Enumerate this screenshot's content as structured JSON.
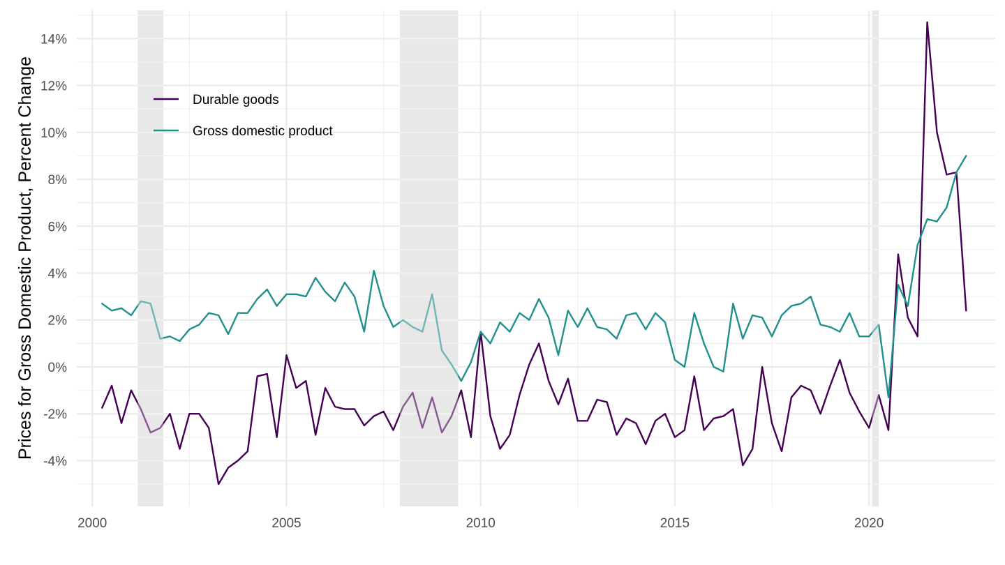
{
  "chart_data": {
    "type": "line",
    "title": "",
    "xlabel": "",
    "ylabel": "Prices for Gross Domestic Product, Percent Change",
    "xlim": [
      1999.6,
      2023.25
    ],
    "ylim": [
      -0.0595,
      0.152
    ],
    "x_ticks": [
      2000,
      2005,
      2010,
      2015,
      2020
    ],
    "x_tick_labels": [
      "2000",
      "2005",
      "2010",
      "2015",
      "2020"
    ],
    "y_ticks": [
      -0.04,
      -0.02,
      0.0,
      0.02,
      0.04,
      0.06,
      0.08,
      0.1,
      0.12,
      0.14
    ],
    "y_tick_labels": [
      "-4%",
      "-2%",
      "0%",
      "2%",
      "4%",
      "6%",
      "8%",
      "10%",
      "12%",
      "14%"
    ],
    "grid": true,
    "legend_position": "top-left",
    "recessions": [
      {
        "start": 2001.17,
        "end": 2001.83
      },
      {
        "start": 2007.92,
        "end": 2009.42
      },
      {
        "start": 2020.08,
        "end": 2020.25
      }
    ],
    "series": [
      {
        "name": "Durable goods",
        "color": "#440154",
        "x": [
          2000.25,
          2000.5,
          2000.75,
          2001.0,
          2001.25,
          2001.5,
          2001.75,
          2002.0,
          2002.25,
          2002.5,
          2002.75,
          2003.0,
          2003.25,
          2003.5,
          2003.75,
          2004.0,
          2004.25,
          2004.5,
          2004.75,
          2005.0,
          2005.25,
          2005.5,
          2005.75,
          2006.0,
          2006.25,
          2006.5,
          2006.75,
          2007.0,
          2007.25,
          2007.5,
          2007.75,
          2008.0,
          2008.25,
          2008.5,
          2008.75,
          2009.0,
          2009.25,
          2009.5,
          2009.75,
          2010.0,
          2010.25,
          2010.5,
          2010.75,
          2011.0,
          2011.25,
          2011.5,
          2011.75,
          2012.0,
          2012.25,
          2012.5,
          2012.75,
          2013.0,
          2013.25,
          2013.5,
          2013.75,
          2014.0,
          2014.25,
          2014.5,
          2014.75,
          2015.0,
          2015.25,
          2015.5,
          2015.75,
          2016.0,
          2016.25,
          2016.5,
          2016.75,
          2017.0,
          2017.25,
          2017.5,
          2017.75,
          2018.0,
          2018.25,
          2018.5,
          2018.75,
          2019.0,
          2019.25,
          2019.5,
          2019.75,
          2020.0,
          2020.25,
          2020.5,
          2020.75,
          2021.0,
          2021.25,
          2021.5,
          2021.75,
          2022.0,
          2022.25,
          2022.5
        ],
        "values": [
          -0.0175,
          -0.008,
          -0.024,
          -0.01,
          -0.018,
          -0.028,
          -0.026,
          -0.02,
          -0.035,
          -0.02,
          -0.02,
          -0.026,
          -0.05,
          -0.043,
          -0.04,
          -0.036,
          -0.004,
          -0.003,
          -0.03,
          0.005,
          -0.009,
          -0.006,
          -0.029,
          -0.009,
          -0.017,
          -0.018,
          -0.018,
          -0.025,
          -0.021,
          -0.019,
          -0.027,
          -0.017,
          -0.011,
          -0.026,
          -0.013,
          -0.028,
          -0.021,
          -0.01,
          -0.03,
          0.015,
          -0.021,
          -0.035,
          -0.029,
          -0.012,
          0.001,
          0.01,
          -0.006,
          -0.016,
          -0.005,
          -0.023,
          -0.023,
          -0.014,
          -0.015,
          -0.029,
          -0.022,
          -0.024,
          -0.033,
          -0.023,
          -0.02,
          -0.03,
          -0.027,
          -0.004,
          -0.027,
          -0.022,
          -0.021,
          -0.018,
          -0.042,
          -0.035,
          0.0,
          -0.024,
          -0.036,
          -0.013,
          -0.008,
          -0.01,
          -0.02,
          -0.008,
          0.003,
          -0.011,
          -0.019,
          -0.026,
          -0.012,
          -0.027,
          0.048,
          0.021,
          0.013,
          0.147,
          0.1,
          0.082,
          0.083,
          0.024
        ]
      },
      {
        "name": "Gross domestic product",
        "color": "#21908c",
        "x": [
          2000.25,
          2000.5,
          2000.75,
          2001.0,
          2001.25,
          2001.5,
          2001.75,
          2002.0,
          2002.25,
          2002.5,
          2002.75,
          2003.0,
          2003.25,
          2003.5,
          2003.75,
          2004.0,
          2004.25,
          2004.5,
          2004.75,
          2005.0,
          2005.25,
          2005.5,
          2005.75,
          2006.0,
          2006.25,
          2006.5,
          2006.75,
          2007.0,
          2007.25,
          2007.5,
          2007.75,
          2008.0,
          2008.25,
          2008.5,
          2008.75,
          2009.0,
          2009.25,
          2009.5,
          2009.75,
          2010.0,
          2010.25,
          2010.5,
          2010.75,
          2011.0,
          2011.25,
          2011.5,
          2011.75,
          2012.0,
          2012.25,
          2012.5,
          2012.75,
          2013.0,
          2013.25,
          2013.5,
          2013.75,
          2014.0,
          2014.25,
          2014.5,
          2014.75,
          2015.0,
          2015.25,
          2015.5,
          2015.75,
          2016.0,
          2016.25,
          2016.5,
          2016.75,
          2017.0,
          2017.25,
          2017.5,
          2017.75,
          2018.0,
          2018.25,
          2018.5,
          2018.75,
          2019.0,
          2019.25,
          2019.5,
          2019.75,
          2020.0,
          2020.25,
          2020.5,
          2020.75,
          2021.0,
          2021.25,
          2021.5,
          2021.75,
          2022.0,
          2022.25,
          2022.5
        ],
        "values": [
          0.027,
          0.024,
          0.025,
          0.022,
          0.028,
          0.027,
          0.012,
          0.013,
          0.011,
          0.016,
          0.018,
          0.023,
          0.022,
          0.014,
          0.023,
          0.023,
          0.029,
          0.033,
          0.026,
          0.031,
          0.031,
          0.03,
          0.038,
          0.032,
          0.028,
          0.036,
          0.03,
          0.015,
          0.041,
          0.026,
          0.017,
          0.02,
          0.017,
          0.015,
          0.031,
          0.007,
          0.001,
          -0.006,
          0.002,
          0.015,
          0.01,
          0.019,
          0.015,
          0.023,
          0.02,
          0.029,
          0.021,
          0.005,
          0.024,
          0.017,
          0.025,
          0.017,
          0.016,
          0.012,
          0.022,
          0.023,
          0.016,
          0.023,
          0.019,
          0.003,
          0.0,
          0.023,
          0.01,
          0.0,
          -0.002,
          0.027,
          0.012,
          0.022,
          0.021,
          0.013,
          0.022,
          0.026,
          0.027,
          0.03,
          0.018,
          0.017,
          0.015,
          0.023,
          0.013,
          0.013,
          0.018,
          -0.013,
          0.035,
          0.026,
          0.052,
          0.063,
          0.062,
          0.068,
          0.083,
          0.09
        ]
      }
    ]
  }
}
